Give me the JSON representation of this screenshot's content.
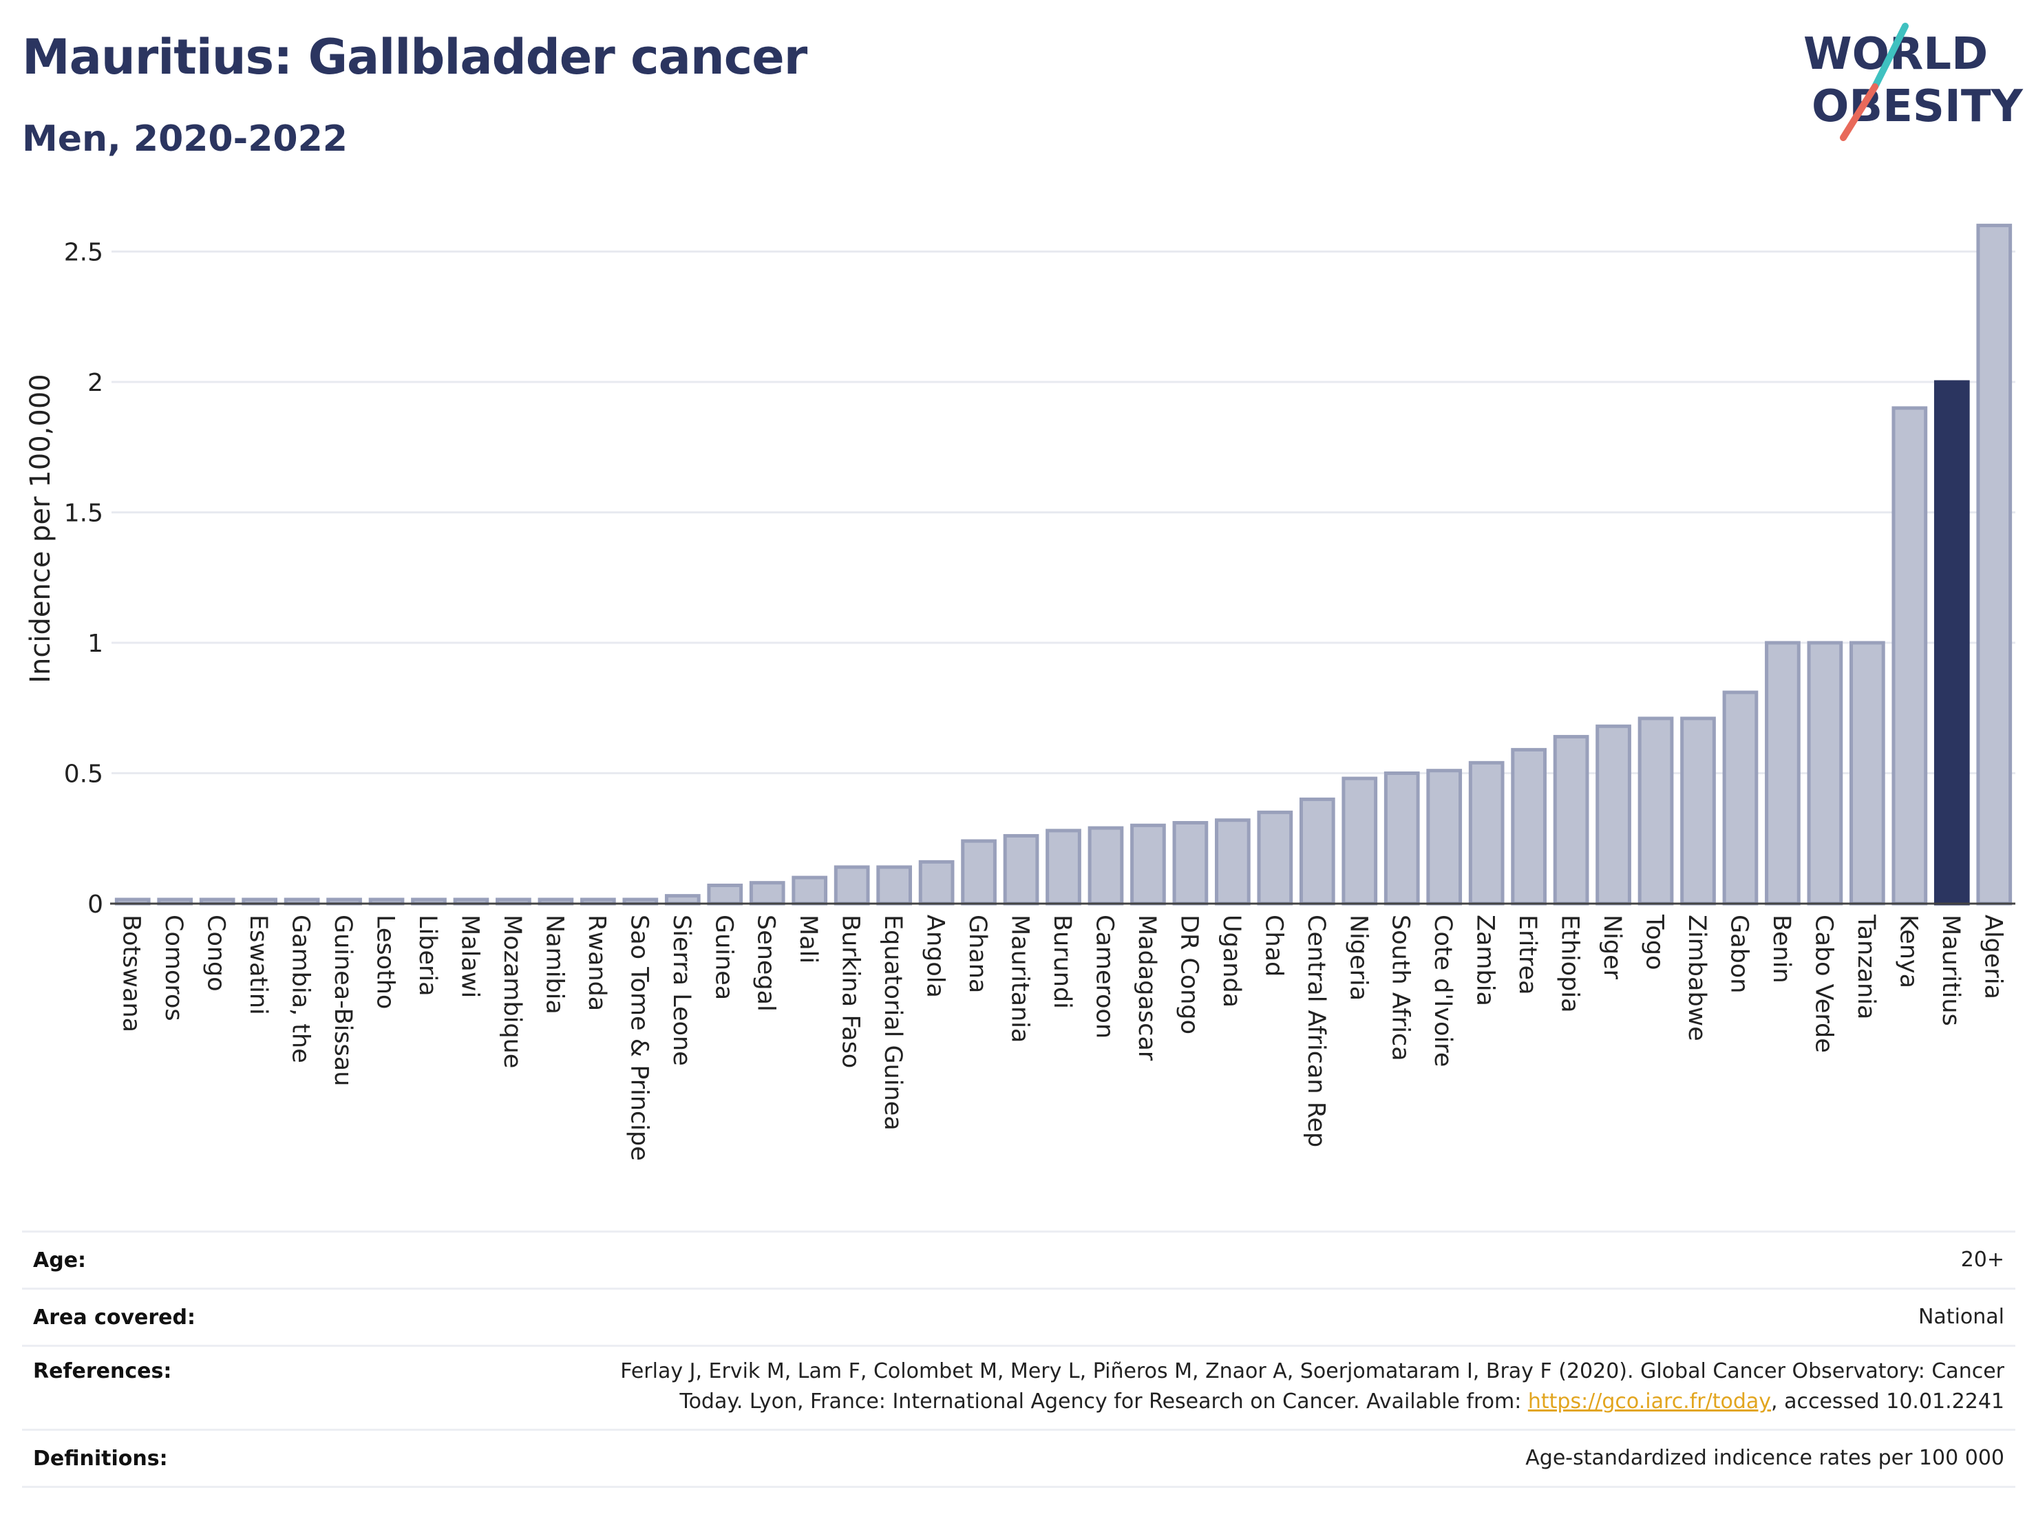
{
  "header": {
    "title": "Mauritius: Gallbladder cancer",
    "subtitle": "Men, 2020-2022"
  },
  "logo": {
    "line1": "WORLD",
    "line2": "OBESITY",
    "colors": {
      "text": "#2b3560",
      "slash_top": "#3fc1c0",
      "slash_bottom": "#e8695a"
    }
  },
  "chart_data": {
    "type": "bar",
    "ylabel": "Incidence per 100,000",
    "xlabel": "",
    "ylim": [
      0,
      2.62
    ],
    "yticks": [
      0,
      0.5,
      1,
      1.5,
      2,
      2.5
    ],
    "ytick_labels": [
      "0",
      "0.5",
      "1",
      "1.5",
      "2",
      "2.5"
    ],
    "grid": true,
    "highlight": "Mauritius",
    "colors": {
      "bar": "#bcc1d2",
      "bar_edge": "#99a0bb",
      "highlight": "#2b3560",
      "grid": "#e8eaf0"
    },
    "categories": [
      "Botswana",
      "Comoros",
      "Congo",
      "Eswatini",
      "Gambia, the",
      "Guinea-Bissau",
      "Lesotho",
      "Liberia",
      "Malawi",
      "Mozambique",
      "Namibia",
      "Rwanda",
      "Sao Tome & Principe",
      "Sierra Leone",
      "Guinea",
      "Senegal",
      "Mali",
      "Burkina Faso",
      "Equatorial Guinea",
      "Angola",
      "Ghana",
      "Mauritania",
      "Burundi",
      "Cameroon",
      "Madagascar",
      "DR Congo",
      "Uganda",
      "Chad",
      "Central African Rep",
      "Nigeria",
      "South Africa",
      "Cote d'Ivoire",
      "Zambia",
      "Eritrea",
      "Ethiopia",
      "Niger",
      "Togo",
      "Zimbabwe",
      "Gabon",
      "Benin",
      "Cabo Verde",
      "Tanzania",
      "Kenya",
      "Mauritius",
      "Algeria"
    ],
    "values": [
      0,
      0,
      0,
      0,
      0,
      0,
      0,
      0,
      0,
      0,
      0,
      0,
      0,
      0.03,
      0.07,
      0.08,
      0.1,
      0.14,
      0.14,
      0.16,
      0.24,
      0.26,
      0.28,
      0.29,
      0.3,
      0.31,
      0.32,
      0.35,
      0.4,
      0.48,
      0.5,
      0.51,
      0.54,
      0.59,
      0.64,
      0.68,
      0.71,
      0.71,
      0.81,
      1.0,
      1.0,
      1.0,
      1.9,
      2.0,
      2.6
    ]
  },
  "info": {
    "age_label": "Age:",
    "age_value": "20+",
    "area_label": "Area covered:",
    "area_value": "National",
    "references_label": "References:",
    "references_line1": "Ferlay J, Ervik M, Lam F, Colombet M, Mery L, Piñeros M, Znaor A, Soerjomataram I, Bray F (2020). Global Cancer Observatory: Cancer",
    "references_line2_pre": "Today. Lyon, France: International Agency for Research on Cancer. Available from: ",
    "references_link": "https://gco.iarc.fr/today",
    "references_line2_post": ", accessed 10.01.2241",
    "definitions_label": "Definitions:",
    "definitions_value": "Age-standardized indicence rates per 100 000"
  }
}
